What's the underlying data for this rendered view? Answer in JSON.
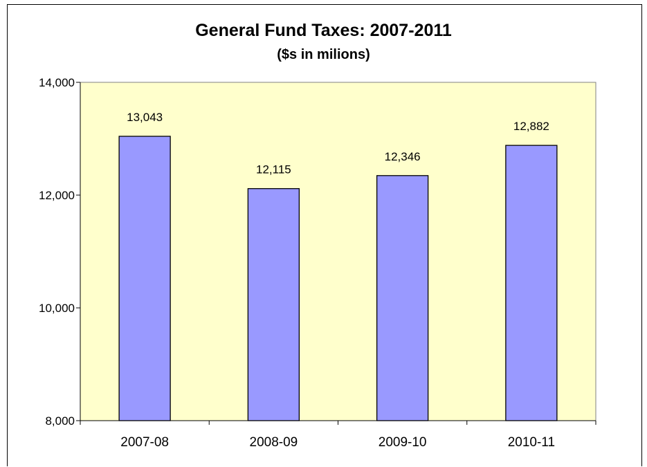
{
  "chart_data": {
    "type": "bar",
    "title": "General Fund Taxes: 2007-2011",
    "subtitle": "($s in milions)",
    "categories": [
      "2007-08",
      "2008-09",
      "2009-10",
      "2010-11"
    ],
    "values": [
      13043,
      12115,
      12346,
      12882
    ],
    "value_labels": [
      "13,043",
      "12,115",
      "12,346",
      "12,882"
    ],
    "ylim": [
      8000,
      14000
    ],
    "yticks": [
      8000,
      10000,
      12000,
      14000
    ],
    "ytick_labels": [
      "8,000",
      "10,000",
      "12,000",
      "14,000"
    ],
    "grid": false,
    "legend": "none",
    "colors": {
      "bar": "#9999ff",
      "plot_bg": "#ffffcc",
      "bar_edge": "#000000"
    }
  }
}
